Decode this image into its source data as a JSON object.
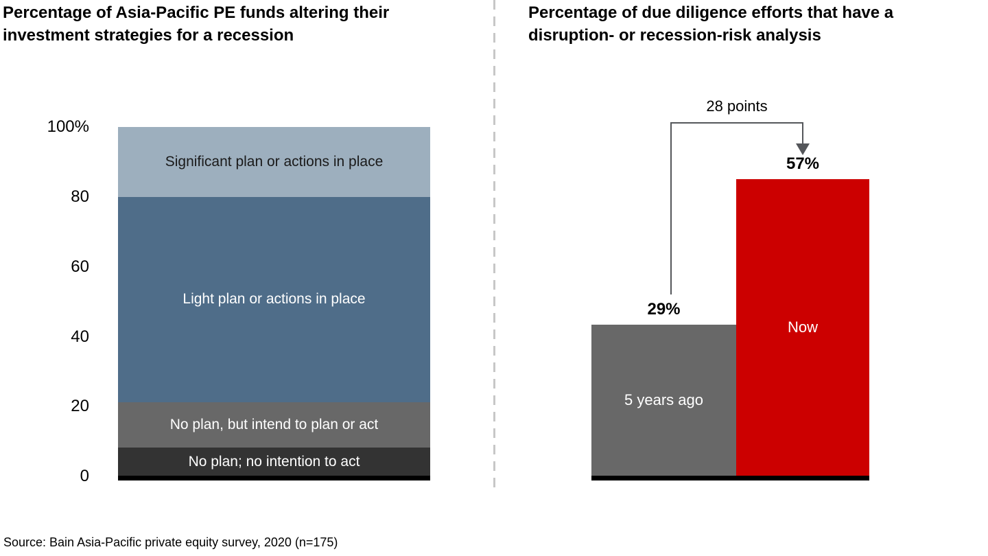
{
  "chart_data": [
    {
      "type": "bar",
      "subtype": "single-column-stacked-100pct",
      "title": "Percentage of Asia-Pacific PE funds altering their investment strategies for a recession",
      "ylim": [
        0,
        100
      ],
      "y_ticks": [
        "100%",
        "80",
        "60",
        "40",
        "20",
        "0"
      ],
      "grid": false,
      "legend_position": "in-bar-labels",
      "segments": [
        {
          "label": "Significant plan or actions in place",
          "value": 20,
          "color": "#9dafbe",
          "label_color": "#1a1a1a"
        },
        {
          "label": "Light plan or actions in place",
          "value": 59,
          "color": "#4f6d89",
          "label_color": "#ffffff"
        },
        {
          "label": "No plan, but intend to plan or act",
          "value": 13,
          "color": "#686868",
          "label_color": "#ffffff"
        },
        {
          "label": "No plan; no intention to act",
          "value": 8,
          "color": "#333333",
          "label_color": "#ffffff"
        }
      ]
    },
    {
      "type": "bar",
      "subtype": "grouped-columns",
      "title": "Percentage of due diligence efforts that have a disruption- or recession-risk analysis",
      "ylim": [
        0,
        60
      ],
      "grid": false,
      "categories": [
        "5 years ago",
        "Now"
      ],
      "values": [
        29,
        57
      ],
      "bars": [
        {
          "label": "5 years ago",
          "value": 29,
          "value_label": "29%",
          "color": "#686868",
          "label_color": "#ffffff"
        },
        {
          "label": "Now",
          "value": 57,
          "value_label": "57%",
          "color": "#cc0000",
          "label_color": "#ffffff"
        }
      ],
      "annotation": "28 points"
    }
  ],
  "colors": {
    "accent_red": "#cc0000",
    "steel_blue": "#4f6d89",
    "light_blue_gray": "#9dafbe",
    "mid_gray": "#686868",
    "charcoal": "#333333",
    "bracket_gray": "#54565a",
    "divider_gray": "#c7c7c7",
    "axis_black": "#000000"
  },
  "source": "Source: Bain Asia-Pacific private equity survey, 2020 (n=175)"
}
